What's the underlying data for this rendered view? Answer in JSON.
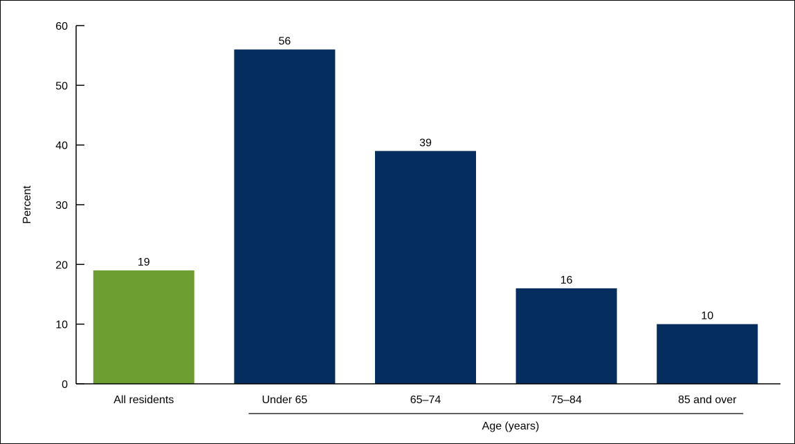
{
  "chart_data": {
    "type": "bar",
    "ylabel": "Percent",
    "xlabel": "Age (years)",
    "ylim": [
      0,
      60
    ],
    "yticks": [
      0,
      10,
      20,
      30,
      40,
      50,
      60
    ],
    "grid": false,
    "categories": [
      "All residents",
      "Under 65",
      "65–74",
      "75–84",
      "85 and over"
    ],
    "values": [
      19,
      56,
      39,
      16,
      10
    ],
    "colors": [
      "#6d9e31",
      "#052e5e",
      "#052e5e",
      "#052e5e",
      "#052e5e"
    ],
    "data_labels": [
      "19",
      "56",
      "39",
      "16",
      "10"
    ],
    "group_label_span": [
      "Under 65",
      "85 and over"
    ]
  }
}
